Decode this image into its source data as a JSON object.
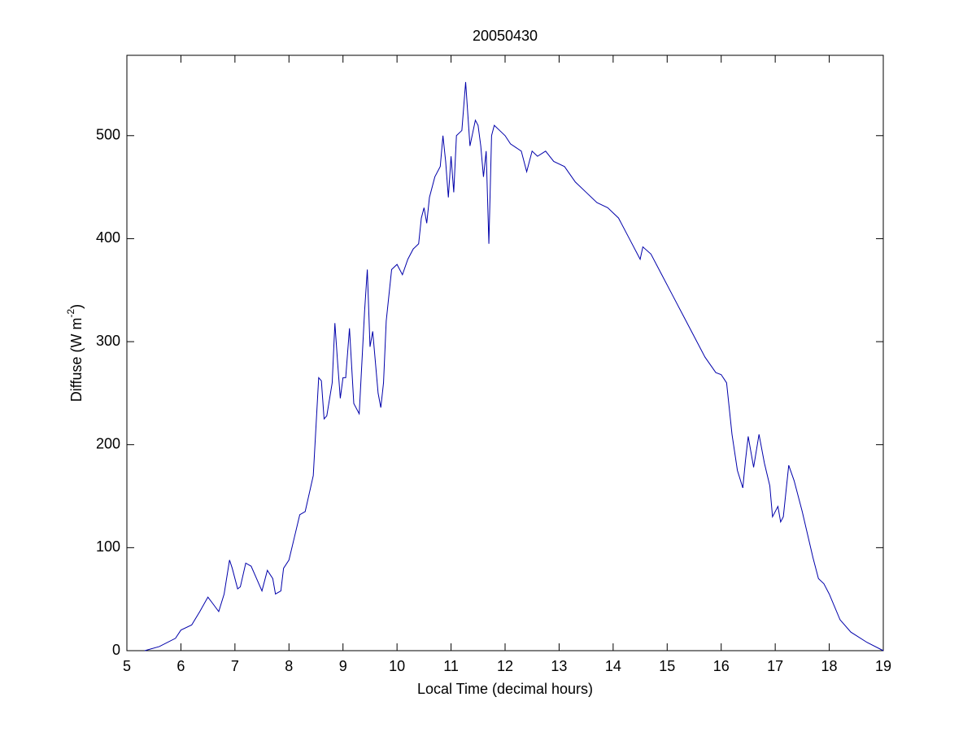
{
  "chart_data": {
    "type": "line",
    "title": "20050430",
    "xlabel": "Local Time (decimal hours)",
    "ylabel": {
      "text": "Diffuse (W m",
      "sup": "-2",
      "end": ")"
    },
    "xlim": [
      5,
      19
    ],
    "ylim": [
      0,
      578
    ],
    "xticks": [
      5,
      6,
      7,
      8,
      9,
      10,
      11,
      12,
      13,
      14,
      15,
      16,
      17,
      18,
      19
    ],
    "yticks": [
      0,
      100,
      200,
      300,
      400,
      500
    ],
    "grid": false,
    "series": [
      {
        "color": "#0000aa",
        "x": [
          5.33,
          5.6,
          5.9,
          6.0,
          6.2,
          6.35,
          6.5,
          6.6,
          6.7,
          6.8,
          6.9,
          6.95,
          7.05,
          7.1,
          7.2,
          7.3,
          7.4,
          7.5,
          7.6,
          7.7,
          7.75,
          7.85,
          7.9,
          8.0,
          8.1,
          8.2,
          8.3,
          8.45,
          8.55,
          8.6,
          8.65,
          8.7,
          8.8,
          8.85,
          8.9,
          8.95,
          9.0,
          9.05,
          9.12,
          9.2,
          9.3,
          9.4,
          9.45,
          9.5,
          9.55,
          9.65,
          9.7,
          9.75,
          9.8,
          9.9,
          10.0,
          10.1,
          10.2,
          10.3,
          10.4,
          10.45,
          10.5,
          10.55,
          10.6,
          10.7,
          10.8,
          10.85,
          10.9,
          10.95,
          11.0,
          11.05,
          11.1,
          11.2,
          11.27,
          11.35,
          11.45,
          11.5,
          11.55,
          11.6,
          11.65,
          11.7,
          11.75,
          11.8,
          11.9,
          12.0,
          12.1,
          12.3,
          12.4,
          12.5,
          12.6,
          12.75,
          12.9,
          13.1,
          13.3,
          13.5,
          13.7,
          13.9,
          14.1,
          14.3,
          14.5,
          14.55,
          14.7,
          14.9,
          15.1,
          15.3,
          15.5,
          15.7,
          15.9,
          16.0,
          16.1,
          16.2,
          16.3,
          16.4,
          16.45,
          16.5,
          16.6,
          16.7,
          16.8,
          16.9,
          16.95,
          17.05,
          17.1,
          17.15,
          17.25,
          17.35,
          17.5,
          17.7,
          17.8,
          17.9,
          18.0,
          18.2,
          18.4,
          18.7,
          19.0
        ],
        "values": [
          0,
          4,
          12,
          20,
          25,
          38,
          52,
          45,
          38,
          55,
          88,
          80,
          60,
          62,
          85,
          82,
          70,
          58,
          78,
          70,
          55,
          58,
          80,
          88,
          110,
          132,
          135,
          170,
          265,
          262,
          225,
          228,
          260,
          318,
          280,
          245,
          265,
          265,
          313,
          240,
          230,
          330,
          370,
          295,
          310,
          250,
          236,
          260,
          320,
          370,
          375,
          365,
          380,
          390,
          395,
          420,
          430,
          415,
          440,
          460,
          470,
          500,
          475,
          440,
          480,
          445,
          500,
          505,
          552,
          490,
          515,
          510,
          490,
          460,
          485,
          395,
          500,
          510,
          505,
          500,
          492,
          485,
          465,
          485,
          480,
          485,
          475,
          470,
          455,
          445,
          435,
          430,
          420,
          400,
          380,
          392,
          385,
          365,
          345,
          325,
          305,
          285,
          270,
          268,
          260,
          210,
          175,
          158,
          185,
          208,
          178,
          210,
          182,
          160,
          130,
          140,
          125,
          130,
          180,
          165,
          135,
          90,
          70,
          65,
          55,
          30,
          18,
          8,
          0
        ]
      }
    ]
  }
}
